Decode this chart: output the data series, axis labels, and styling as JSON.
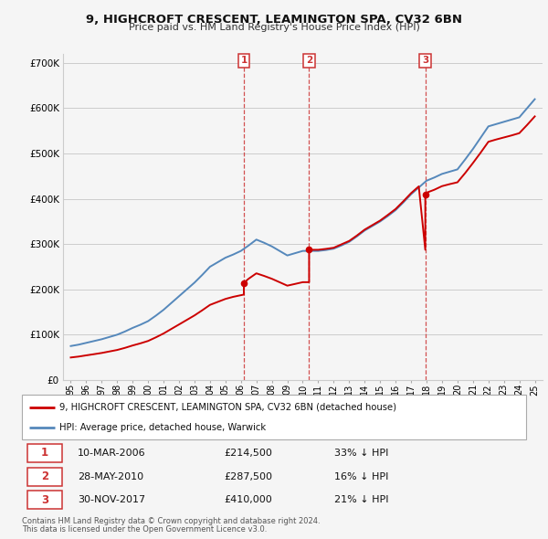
{
  "title": "9, HIGHCROFT CRESCENT, LEAMINGTON SPA, CV32 6BN",
  "subtitle": "Price paid vs. HM Land Registry's House Price Index (HPI)",
  "footer1": "Contains HM Land Registry data © Crown copyright and database right 2024.",
  "footer2": "This data is licensed under the Open Government Licence v3.0.",
  "legend_line1": "9, HIGHCROFT CRESCENT, LEAMINGTON SPA, CV32 6BN (detached house)",
  "legend_line2": "HPI: Average price, detached house, Warwick",
  "transactions": [
    {
      "num": 1,
      "date": "10-MAR-2006",
      "price": "£214,500",
      "pct": "33% ↓ HPI",
      "year": 2006.19,
      "value": 214500
    },
    {
      "num": 2,
      "date": "28-MAY-2010",
      "price": "£287,500",
      "pct": "16% ↓ HPI",
      "year": 2010.41,
      "value": 287500
    },
    {
      "num": 3,
      "date": "30-NOV-2017",
      "price": "£410,000",
      "pct": "21% ↓ HPI",
      "year": 2017.92,
      "value": 410000
    }
  ],
  "hpi_x": [
    1995.0,
    1995.5,
    1996.0,
    1996.5,
    1997.0,
    1997.5,
    1998.0,
    1998.5,
    1999.0,
    1999.5,
    2000.0,
    2000.5,
    2001.0,
    2001.5,
    2002.0,
    2002.5,
    2003.0,
    2003.5,
    2004.0,
    2004.5,
    2005.0,
    2005.5,
    2006.0,
    2006.5,
    2007.0,
    2007.5,
    2008.0,
    2008.5,
    2009.0,
    2009.5,
    2010.0,
    2010.5,
    2011.0,
    2011.5,
    2012.0,
    2012.5,
    2013.0,
    2013.5,
    2014.0,
    2014.5,
    2015.0,
    2015.5,
    2016.0,
    2016.5,
    2017.0,
    2017.5,
    2018.0,
    2018.5,
    2019.0,
    2019.5,
    2020.0,
    2020.5,
    2021.0,
    2021.5,
    2022.0,
    2022.5,
    2023.0,
    2023.5,
    2024.0,
    2024.5,
    2025.0
  ],
  "hpi_y": [
    75000,
    78000,
    82000,
    86000,
    90000,
    95000,
    100000,
    107000,
    115000,
    122000,
    130000,
    142000,
    155000,
    170000,
    185000,
    200000,
    215000,
    232000,
    250000,
    260000,
    270000,
    277000,
    285000,
    297000,
    310000,
    303000,
    295000,
    285000,
    275000,
    280000,
    285000,
    285000,
    285000,
    287000,
    290000,
    297000,
    305000,
    317000,
    330000,
    340000,
    350000,
    362000,
    375000,
    392000,
    410000,
    425000,
    440000,
    447000,
    455000,
    460000,
    465000,
    487000,
    510000,
    535000,
    560000,
    565000,
    570000,
    575000,
    580000,
    600000,
    620000
  ],
  "red_x": [
    1995.0,
    1995.5,
    1996.0,
    1996.5,
    1997.0,
    1997.5,
    1998.0,
    1998.5,
    1999.0,
    1999.5,
    2000.0,
    2000.5,
    2001.0,
    2001.5,
    2002.0,
    2002.5,
    2003.0,
    2003.5,
    2004.0,
    2004.5,
    2005.0,
    2005.5,
    2006.19,
    2006.19,
    2006.5,
    2007.0,
    2007.5,
    2008.0,
    2008.5,
    2009.0,
    2009.5,
    2010.0,
    2010.41,
    2010.41,
    2010.5,
    2011.0,
    2011.5,
    2012.0,
    2012.5,
    2013.0,
    2013.5,
    2014.0,
    2014.5,
    2015.0,
    2015.5,
    2016.0,
    2016.5,
    2017.0,
    2017.5,
    2017.92,
    2017.92,
    2018.0,
    2018.5,
    2019.0,
    2019.5,
    2020.0,
    2020.5,
    2021.0,
    2021.5,
    2022.0,
    2022.5,
    2023.0,
    2023.5,
    2024.0,
    2024.5,
    2025.0
  ],
  "red_y": [
    49700,
    51700,
    54400,
    57000,
    59700,
    63000,
    66300,
    70900,
    76200,
    80900,
    86200,
    94100,
    102700,
    112700,
    122600,
    132600,
    142600,
    153900,
    165800,
    172400,
    179000,
    183600,
    188600,
    214500,
    223600,
    235500,
    229800,
    223500,
    215900,
    208300,
    212100,
    216000,
    216000,
    287500,
    287500,
    287500,
    289500,
    292000,
    299500,
    307000,
    319000,
    332000,
    342000,
    352000,
    364500,
    377500,
    394500,
    412500,
    427500,
    287500,
    410000,
    413500,
    420000,
    428000,
    432500,
    436500,
    457000,
    479000,
    502000,
    526000,
    531000,
    535500,
    540000,
    545000,
    563000,
    582000
  ],
  "red_color": "#cc0000",
  "blue_color": "#5588bb",
  "vline_color": "#cc3333",
  "background_color": "#f5f5f5",
  "grid_color": "#cccccc",
  "ylim_max": 720000,
  "xlim_start": 1994.5,
  "xlim_end": 2025.5,
  "x_tick_years": [
    1995,
    1996,
    1997,
    1998,
    1999,
    2000,
    2001,
    2002,
    2003,
    2004,
    2005,
    2006,
    2007,
    2008,
    2009,
    2010,
    2011,
    2012,
    2013,
    2014,
    2015,
    2016,
    2017,
    2018,
    2019,
    2020,
    2021,
    2022,
    2023,
    2024,
    2025
  ]
}
